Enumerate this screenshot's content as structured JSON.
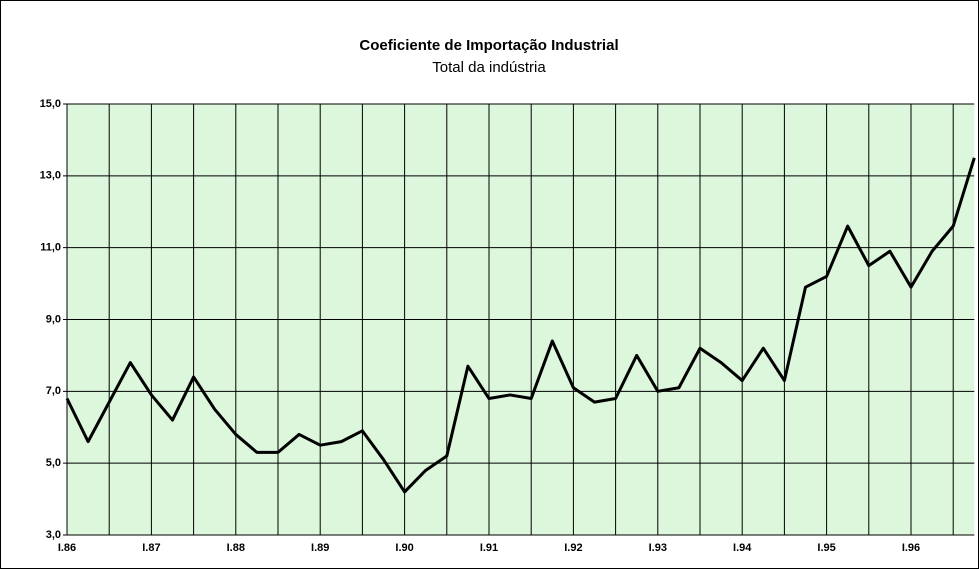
{
  "chart_data": {
    "type": "line",
    "title": "Coeficiente de Importação Industrial",
    "subtitle": "Total da indústria",
    "categories": [
      "I.86",
      null,
      null,
      null,
      "I.87",
      null,
      null,
      null,
      "I.88",
      null,
      null,
      null,
      "I.89",
      null,
      null,
      null,
      "I.90",
      null,
      null,
      null,
      "I.91",
      null,
      null,
      null,
      "I.92",
      null,
      null,
      null,
      "I.93",
      null,
      null,
      null,
      "I.94",
      null,
      null,
      null,
      "I.95",
      null,
      null,
      null,
      "I.96",
      null,
      null,
      null
    ],
    "values": [
      6.8,
      5.6,
      6.7,
      7.8,
      6.9,
      6.2,
      7.4,
      6.5,
      5.8,
      5.3,
      5.3,
      5.8,
      5.5,
      5.6,
      5.9,
      5.1,
      4.2,
      4.8,
      5.2,
      7.7,
      6.8,
      6.9,
      6.8,
      8.4,
      7.1,
      6.7,
      6.8,
      8.0,
      7.0,
      7.1,
      8.2,
      7.8,
      7.3,
      8.2,
      7.3,
      9.9,
      10.2,
      11.6,
      10.5,
      10.9,
      9.9,
      10.9,
      11.6,
      13.5
    ],
    "color": "#000000",
    "ylim": [
      3,
      15
    ],
    "yticks": [
      {
        "value": 3,
        "label": "3,0"
      },
      {
        "value": 5,
        "label": "5,0"
      },
      {
        "value": 7,
        "label": "7,0"
      },
      {
        "value": 9,
        "label": "9,0"
      },
      {
        "value": 11,
        "label": "11,0"
      },
      {
        "value": 13,
        "label": "13,0"
      },
      {
        "value": 15,
        "label": "15,0"
      }
    ],
    "grid": true
  }
}
